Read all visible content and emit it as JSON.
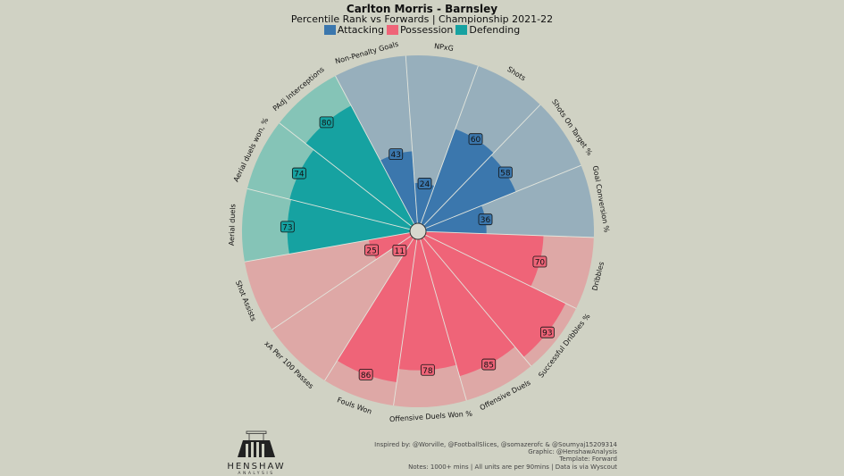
{
  "chart_data": {
    "type": "polar-bar",
    "title": "Carlton Morris - Barnsley",
    "subtitle": "Percentile Rank vs Forwards | Championship 2021-22",
    "legend": [
      {
        "name": "Attacking",
        "color": "#3b77ad"
      },
      {
        "name": "Possession",
        "color": "#ef6478"
      },
      {
        "name": "Defending",
        "color": "#16a2a1"
      }
    ],
    "background_colors": {
      "Attacking": "#97afbc",
      "Possession": "#dea8a6",
      "Defending": "#85c4b7"
    },
    "range": [
      0,
      100
    ],
    "slices": [
      {
        "label": "Non-Penalty Goals",
        "value": 43,
        "group": "Attacking"
      },
      {
        "label": "NPxG",
        "value": 24,
        "group": "Attacking"
      },
      {
        "label": "Shots",
        "value": 60,
        "group": "Attacking"
      },
      {
        "label": "Shots On Target %",
        "value": 58,
        "group": "Attacking"
      },
      {
        "label": "Goal Conversion %",
        "value": 36,
        "group": "Attacking"
      },
      {
        "label": "Dribbles",
        "value": 70,
        "group": "Possession"
      },
      {
        "label": "Successful Dribbles %",
        "value": 93,
        "group": "Possession"
      },
      {
        "label": "Offensive Duels",
        "value": 85,
        "group": "Possession"
      },
      {
        "label": "Offensive Duels Won %",
        "value": 78,
        "group": "Possession"
      },
      {
        "label": "Fouls Won",
        "value": 86,
        "group": "Possession"
      },
      {
        "label": "xA Per 100 Passes",
        "value": 11,
        "group": "Possession"
      },
      {
        "label": "Shot Assists",
        "value": 25,
        "group": "Possession"
      },
      {
        "label": "Aerial duels",
        "value": 73,
        "group": "Defending"
      },
      {
        "label": "Aerial duels won, %",
        "value": 74,
        "group": "Defending"
      },
      {
        "label": "PAdj Interceptions",
        "value": 80,
        "group": "Defending"
      }
    ]
  },
  "credits": [
    "Inspired by: @Worville, @FootballSlices, @somazerofc & @Soumyaj15209314",
    "Graphic: @HenshawAnalysis",
    "Template: Forward",
    "Notes: 1000+ mins | All units are per 90mins | Data is via Wyscout"
  ],
  "logo": {
    "name": "HENSHAW",
    "sub": "ANALYSIS"
  }
}
